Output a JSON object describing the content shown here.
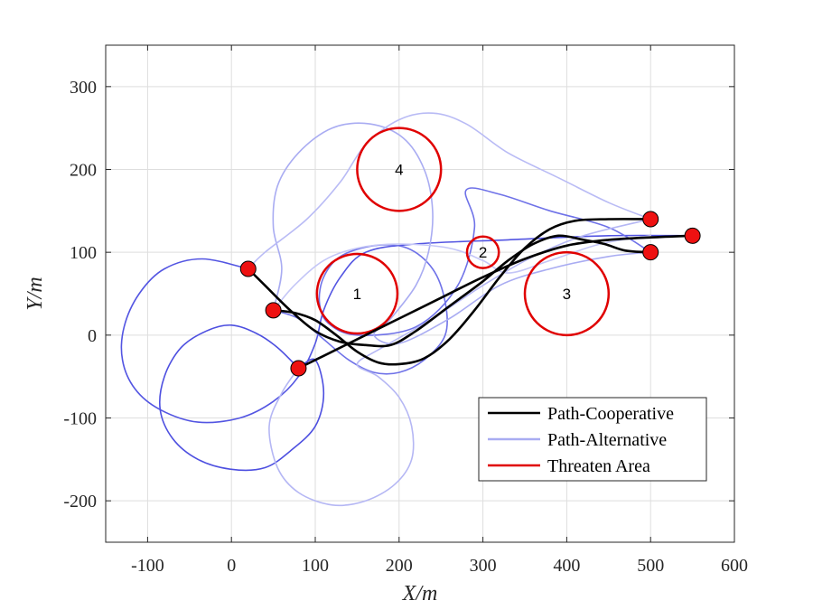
{
  "chart_data": {
    "type": "line",
    "xlabel": "X/m",
    "ylabel": "Y/m",
    "xlim": [
      -150,
      600
    ],
    "ylim": [
      -250,
      350
    ],
    "xticks": [
      -100,
      0,
      100,
      200,
      300,
      400,
      500,
      600
    ],
    "yticks": [
      -200,
      -100,
      0,
      100,
      200,
      300
    ],
    "grid": true,
    "legend": {
      "position": "bottom-right",
      "entries": [
        {
          "label": "Path-Cooperative",
          "color": "#000000"
        },
        {
          "label": "Path-Alternative",
          "color": "#a9acf2"
        },
        {
          "label": "Threaten Area",
          "color": "#e00000"
        }
      ]
    },
    "threat_areas": [
      {
        "label": "1",
        "center": [
          150,
          50
        ],
        "radius": 48
      },
      {
        "label": "2",
        "center": [
          300,
          100
        ],
        "radius": 19
      },
      {
        "label": "3",
        "center": [
          400,
          50
        ],
        "radius": 50
      },
      {
        "label": "4",
        "center": [
          200,
          200
        ],
        "radius": 50
      }
    ],
    "start_points": [
      [
        20,
        80
      ],
      [
        50,
        30
      ],
      [
        80,
        -40
      ]
    ],
    "end_points": [
      [
        500,
        140
      ],
      [
        550,
        120
      ],
      [
        500,
        100
      ]
    ],
    "cooperative_paths": [
      {
        "points": [
          [
            20,
            80
          ],
          [
            40,
            60
          ],
          [
            70,
            30
          ],
          [
            100,
            5
          ],
          [
            130,
            -8
          ],
          [
            160,
            -12
          ],
          [
            190,
            -12
          ],
          [
            220,
            5
          ],
          [
            260,
            35
          ],
          [
            300,
            65
          ],
          [
            330,
            90
          ],
          [
            360,
            110
          ],
          [
            390,
            120
          ],
          [
            420,
            115
          ],
          [
            445,
            110
          ],
          [
            470,
            102
          ],
          [
            500,
            100
          ]
        ]
      },
      {
        "points": [
          [
            50,
            30
          ],
          [
            75,
            27
          ],
          [
            100,
            18
          ],
          [
            125,
            0
          ],
          [
            150,
            -20
          ],
          [
            175,
            -33
          ],
          [
            200,
            -35
          ],
          [
            230,
            -28
          ],
          [
            260,
            -5
          ],
          [
            290,
            30
          ],
          [
            320,
            70
          ],
          [
            350,
            105
          ],
          [
            380,
            128
          ],
          [
            410,
            138
          ],
          [
            450,
            140
          ],
          [
            500,
            140
          ]
        ]
      },
      {
        "points": [
          [
            80,
            -40
          ],
          [
            110,
            -25
          ],
          [
            150,
            -5
          ],
          [
            200,
            20
          ],
          [
            250,
            45
          ],
          [
            300,
            70
          ],
          [
            350,
            92
          ],
          [
            400,
            108
          ],
          [
            450,
            115
          ],
          [
            500,
            118
          ],
          [
            550,
            120
          ]
        ]
      }
    ],
    "alternative_paths": [
      {
        "color": "#4d4fe0",
        "points": [
          [
            80,
            -40
          ],
          [
            55,
            -15
          ],
          [
            30,
            2
          ],
          [
            0,
            12
          ],
          [
            -30,
            5
          ],
          [
            -60,
            -15
          ],
          [
            -80,
            -50
          ],
          [
            -85,
            -90
          ],
          [
            -70,
            -125
          ],
          [
            -40,
            -150
          ],
          [
            0,
            -162
          ],
          [
            40,
            -160
          ],
          [
            70,
            -140
          ],
          [
            100,
            -110
          ],
          [
            110,
            -70
          ],
          [
            100,
            -30
          ],
          [
            80,
            -40
          ]
        ]
      },
      {
        "color": "#5355e2",
        "points": [
          [
            20,
            80
          ],
          [
            -35,
            92
          ],
          [
            -80,
            80
          ],
          [
            -110,
            50
          ],
          [
            -128,
            10
          ],
          [
            -130,
            -30
          ],
          [
            -115,
            -65
          ],
          [
            -85,
            -90
          ],
          [
            -40,
            -105
          ],
          [
            10,
            -100
          ],
          [
            50,
            -80
          ],
          [
            80,
            -50
          ],
          [
            100,
            -10
          ],
          [
            110,
            30
          ],
          [
            130,
            70
          ],
          [
            160,
            100
          ],
          [
            220,
            110
          ],
          [
            330,
            115
          ],
          [
            450,
            120
          ],
          [
            550,
            120
          ]
        ]
      },
      {
        "color": "#6f72e8",
        "points": [
          [
            50,
            30
          ],
          [
            80,
            20
          ],
          [
            110,
            -5
          ],
          [
            140,
            -30
          ],
          [
            170,
            -45
          ],
          [
            200,
            -45
          ],
          [
            230,
            -30
          ],
          [
            255,
            0
          ],
          [
            255,
            40
          ],
          [
            240,
            80
          ],
          [
            210,
            105
          ],
          [
            170,
            108
          ],
          [
            130,
            95
          ],
          [
            110,
            70
          ],
          [
            105,
            40
          ],
          [
            115,
            15
          ],
          [
            150,
            0
          ],
          [
            220,
            10
          ],
          [
            270,
            60
          ],
          [
            290,
            130
          ],
          [
            280,
            175
          ],
          [
            320,
            170
          ],
          [
            380,
            150
          ],
          [
            450,
            130
          ],
          [
            500,
            100
          ]
        ]
      },
      {
        "color": "#a9acf2",
        "points": [
          [
            50,
            30
          ],
          [
            60,
            80
          ],
          [
            50,
            130
          ],
          [
            55,
            180
          ],
          [
            80,
            220
          ],
          [
            120,
            250
          ],
          [
            165,
            255
          ],
          [
            205,
            238
          ],
          [
            230,
            200
          ],
          [
            240,
            150
          ],
          [
            235,
            100
          ],
          [
            220,
            60
          ],
          [
            190,
            20
          ],
          [
            170,
            0
          ],
          [
            200,
            -10
          ],
          [
            260,
            20
          ],
          [
            320,
            60
          ],
          [
            380,
            80
          ],
          [
            450,
            95
          ],
          [
            500,
            100
          ]
        ]
      },
      {
        "color": "#b5b7f4",
        "points": [
          [
            80,
            -40
          ],
          [
            60,
            -70
          ],
          [
            45,
            -110
          ],
          [
            55,
            -160
          ],
          [
            80,
            -190
          ],
          [
            120,
            -205
          ],
          [
            160,
            -200
          ],
          [
            195,
            -180
          ],
          [
            215,
            -150
          ],
          [
            215,
            -110
          ],
          [
            200,
            -75
          ],
          [
            175,
            -50
          ],
          [
            150,
            -35
          ],
          [
            180,
            -15
          ],
          [
            240,
            20
          ],
          [
            300,
            60
          ],
          [
            360,
            95
          ],
          [
            420,
            120
          ],
          [
            500,
            140
          ]
        ]
      },
      {
        "color": "#b9bbf5",
        "points": [
          [
            20,
            80
          ],
          [
            40,
            100
          ],
          [
            90,
            140
          ],
          [
            130,
            185
          ],
          [
            160,
            230
          ],
          [
            200,
            260
          ],
          [
            240,
            268
          ],
          [
            280,
            255
          ],
          [
            330,
            220
          ],
          [
            390,
            190
          ],
          [
            450,
            160
          ],
          [
            500,
            140
          ]
        ]
      },
      {
        "color": "#c4c6f7",
        "points": [
          [
            50,
            30
          ],
          [
            75,
            60
          ],
          [
            110,
            90
          ],
          [
            150,
            105
          ],
          [
            200,
            110
          ],
          [
            260,
            105
          ],
          [
            300,
            90
          ],
          [
            330,
            75
          ],
          [
            380,
            90
          ],
          [
            440,
            110
          ],
          [
            500,
            120
          ]
        ]
      }
    ]
  }
}
